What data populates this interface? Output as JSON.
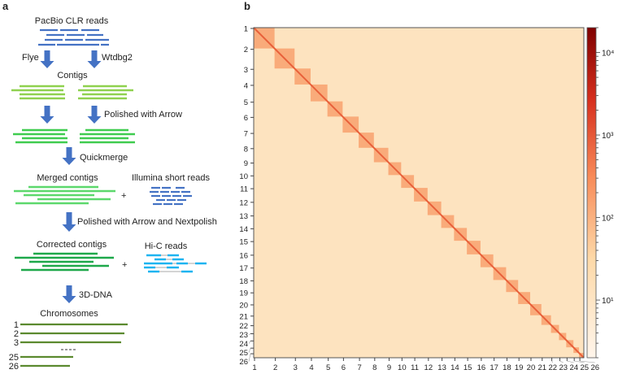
{
  "panel_a": {
    "label": "a",
    "pacbio": "PacBio CLR reads",
    "flye": "Flye",
    "wtdbg2": "Wtdbg2",
    "contigs": "Contigs",
    "polished_arrow": "Polished with Arrow",
    "quickmerge": "Quickmerge",
    "merged": "Merged contigs",
    "illumina": "Illumina short reads",
    "plus": "+",
    "polished_next": "Polished with Arrow and Nextpolish",
    "corrected": "Corrected contigs",
    "hic": "Hi-C reads",
    "dna3d": "3D-DNA",
    "chromosomes": "Chromosomes",
    "chrom_labels": [
      "1",
      "2",
      "3",
      "25",
      "26"
    ],
    "colors": {
      "blue": "#4472c4",
      "arrow": "#4472c4",
      "contig1": "#8fd14f",
      "contig2": "#3fcc4f",
      "merged": "#5cd86c",
      "corrected": "#1ea84a",
      "chrom": "#5b8a2f",
      "hic": "#1eb4f0"
    }
  },
  "chart_data": {
    "type": "heatmap",
    "panel_label": "b",
    "title": "",
    "xlabel": "",
    "ylabel": "",
    "x_ticks": [
      "1",
      "2",
      "3",
      "4",
      "5",
      "6",
      "7",
      "8",
      "9",
      "10",
      "11",
      "12",
      "13",
      "14",
      "15",
      "16",
      "17",
      "18",
      "19",
      "20",
      "21",
      "22",
      "23",
      "24",
      "25",
      "26"
    ],
    "y_ticks": [
      "1",
      "2",
      "3",
      "4",
      "5",
      "6",
      "7",
      "8",
      "9",
      "10",
      "11",
      "12",
      "13",
      "14",
      "15",
      "16",
      "17",
      "18",
      "19",
      "20",
      "21",
      "22",
      "23",
      "24",
      "25",
      "26"
    ],
    "colorbar": {
      "scale": "log",
      "range": [
        2,
        20000
      ],
      "ticks": [
        "10¹",
        "10²",
        "10³",
        "10⁴"
      ],
      "tick_values": [
        10,
        100,
        1000,
        10000
      ],
      "colors": [
        "#fff5eb",
        "#fdd9a8",
        "#f88a58",
        "#d7301f",
        "#7f0000"
      ]
    }
  }
}
